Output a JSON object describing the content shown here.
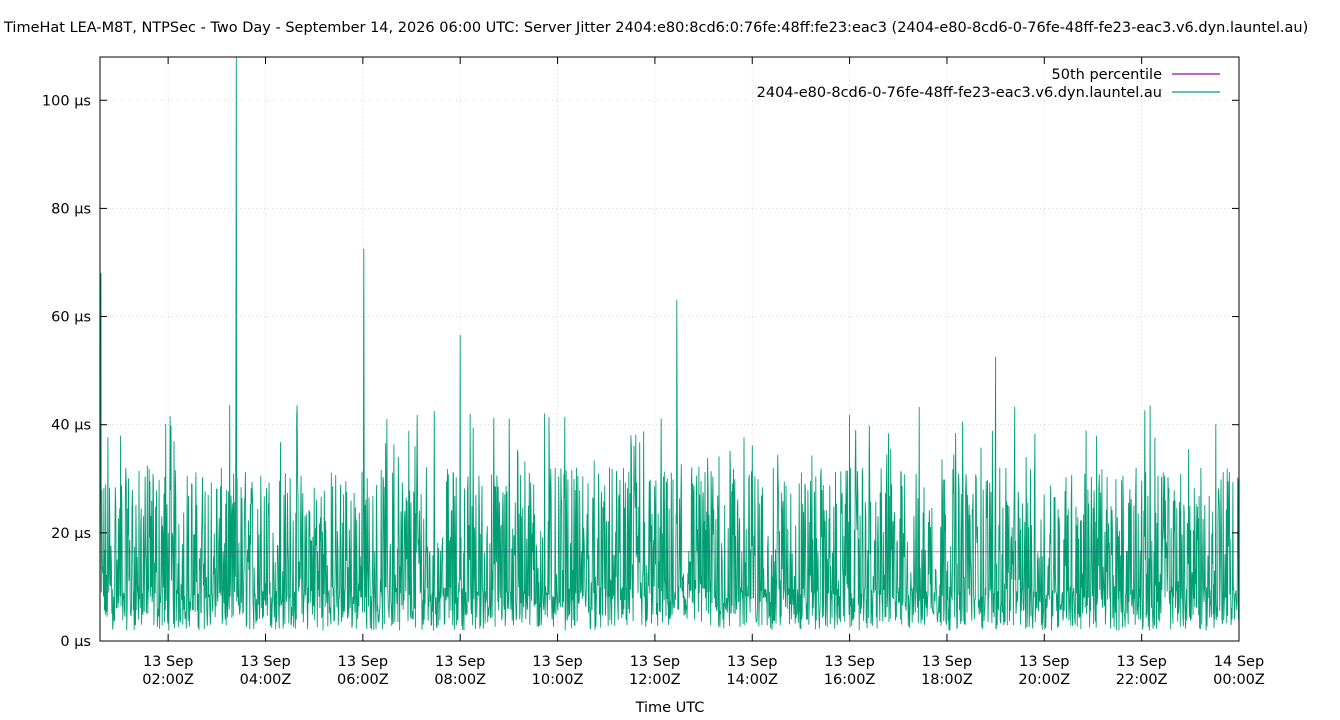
{
  "chart_data": {
    "type": "line",
    "title": "TimeHat LEA-M8T, NTPSec - Two Day - September 14, 2026 06:00 UTC: Server Jitter 2404:e80:8cd6:0:76fe:48ff:fe23:eac3 (2404-e80-8cd6-0-76fe-48ff-fe23-eac3.v6.dyn.launtel.au)",
    "xlabel": "Time UTC",
    "ylabel": "",
    "grid": true,
    "legend_placement": "top-right",
    "x_range_hours": [
      0.6,
      24.0
    ],
    "ylim_us": [
      0,
      108
    ],
    "y_ticks": [
      {
        "value": 0,
        "label": "0 µs"
      },
      {
        "value": 20,
        "label": "20 µs"
      },
      {
        "value": 40,
        "label": "40 µs"
      },
      {
        "value": 60,
        "label": "60 µs"
      },
      {
        "value": 80,
        "label": "80 µs"
      },
      {
        "value": 100,
        "label": "100 µs"
      }
    ],
    "x_ticks": [
      {
        "value": 2,
        "line1": "13 Sep",
        "line2": "02:00Z"
      },
      {
        "value": 4,
        "line1": "13 Sep",
        "line2": "04:00Z"
      },
      {
        "value": 6,
        "line1": "13 Sep",
        "line2": "06:00Z"
      },
      {
        "value": 8,
        "line1": "13 Sep",
        "line2": "08:00Z"
      },
      {
        "value": 10,
        "line1": "13 Sep",
        "line2": "10:00Z"
      },
      {
        "value": 12,
        "line1": "13 Sep",
        "line2": "12:00Z"
      },
      {
        "value": 14,
        "line1": "13 Sep",
        "line2": "14:00Z"
      },
      {
        "value": 16,
        "line1": "13 Sep",
        "line2": "16:00Z"
      },
      {
        "value": 18,
        "line1": "13 Sep",
        "line2": "18:00Z"
      },
      {
        "value": 20,
        "line1": "13 Sep",
        "line2": "20:00Z"
      },
      {
        "value": 22,
        "line1": "13 Sep",
        "line2": "22:00Z"
      },
      {
        "value": 24,
        "line1": "14 Sep",
        "line2": "00:00Z"
      }
    ],
    "series": [
      {
        "name": "50th percentile",
        "color": "#94168f",
        "value_us": 16.5
      },
      {
        "name": "2404-e80-8cd6-0-76fe-48ff-fe23-eac3.v6.dyn.launtel.au",
        "color": "#009e73",
        "typical_range_us": [
          2,
          32
        ],
        "spikes": [
          {
            "x": 0.62,
            "y": 68
          },
          {
            "x": 3.4,
            "y": 108
          },
          {
            "x": 6.02,
            "y": 72.5
          },
          {
            "x": 8.0,
            "y": 56.5
          },
          {
            "x": 12.45,
            "y": 63
          },
          {
            "x": 19.0,
            "y": 52.5
          }
        ]
      }
    ]
  }
}
